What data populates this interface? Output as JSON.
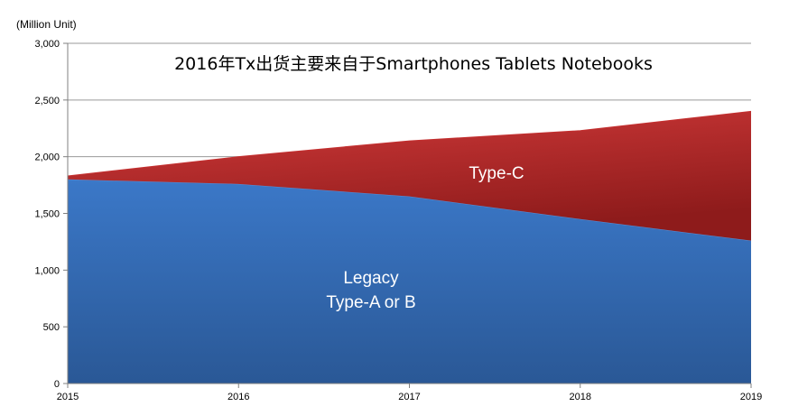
{
  "chart_data": {
    "type": "area",
    "stacked": true,
    "title": "2016年Tx出货主要来自于Smartphones  Tablets   Notebooks",
    "ylabel": "(Million Unit)",
    "xlabel": "",
    "categories": [
      "2015",
      "2016",
      "2017",
      "2018",
      "2019"
    ],
    "ylim": [
      0,
      3000
    ],
    "yticks": [
      "0",
      "500",
      "1,000",
      "1,500",
      "2,000",
      "2,500",
      "3,000"
    ],
    "ytick_values": [
      0,
      500,
      1000,
      1500,
      2000,
      2500,
      3000
    ],
    "grid": true,
    "series": [
      {
        "label_lines": [
          "Legacy",
          "Type-A or B"
        ],
        "values": [
          1800,
          1760,
          1650,
          1450,
          1260
        ],
        "color": "#3B78C8",
        "color_dark": "#2A5896"
      },
      {
        "label_lines": [
          "Type-C"
        ],
        "values": [
          30,
          240,
          490,
          780,
          1140
        ],
        "color": "#D23A3A",
        "color_dark": "#8E1B1B"
      }
    ]
  }
}
